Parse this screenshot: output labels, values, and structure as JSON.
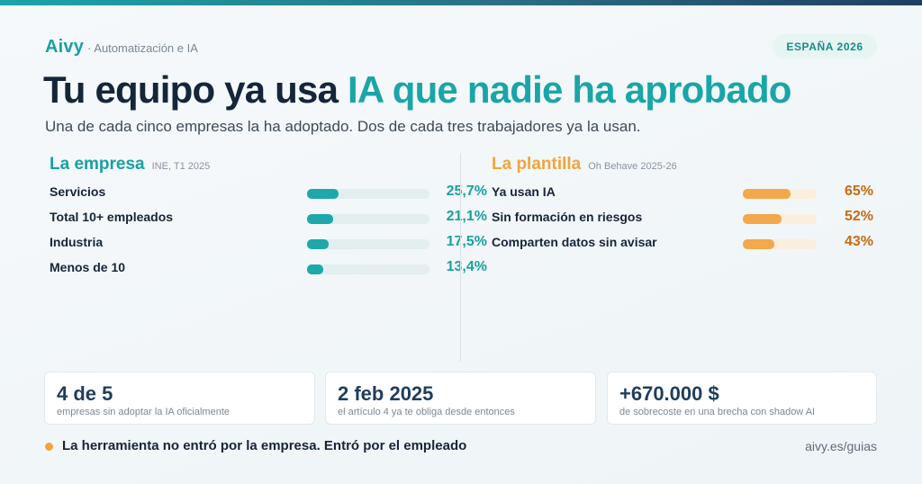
{
  "brand": {
    "name": "Aivy",
    "subtitle": "· Automatización e IA"
  },
  "badge": "ESPAÑA 2026",
  "headline": {
    "part1": "Tu equipo ya usa ",
    "accent": "IA que nadie ha aprobado"
  },
  "subhead": "Una de cada cinco empresas la ha adoptado. Dos de cada tres trabajadores ya la usan.",
  "colors": {
    "teal": "#1aa5a8",
    "orange": "#f3a84b",
    "dark": "#15253a"
  },
  "empresa": {
    "title": "La empresa",
    "source": "INE, T1 2025",
    "rows": [
      {
        "label": "Servicios",
        "value": "25,7%",
        "pct": 25.7
      },
      {
        "label": "Total 10+ empleados",
        "value": "21,1%",
        "pct": 21.1
      },
      {
        "label": "Industria",
        "value": "17,5%",
        "pct": 17.5
      },
      {
        "label": "Menos de 10",
        "value": "13,4%",
        "pct": 13.4
      }
    ]
  },
  "plantilla": {
    "title": "La plantilla",
    "source": "Oh Behave 2025-26",
    "rows": [
      {
        "label": "Ya usan IA",
        "value": "65%",
        "pct": 65
      },
      {
        "label": "Sin formación en riesgos",
        "value": "52%",
        "pct": 52
      },
      {
        "label": "Comparten datos sin avisar",
        "value": "43%",
        "pct": 43
      }
    ]
  },
  "cards": [
    {
      "big": "4 de 5",
      "small": "empresas sin adoptar la IA oficialmente"
    },
    {
      "big": "2 feb 2025",
      "small": "el artículo 4 ya te obliga desde entonces"
    },
    {
      "big": "+670.000 $",
      "small": "de sobrecoste en una brecha con shadow AI"
    }
  ],
  "footer": {
    "text": "La herramienta no entró por la empresa. Entró por el empleado",
    "link": "aivy.es/guias"
  }
}
